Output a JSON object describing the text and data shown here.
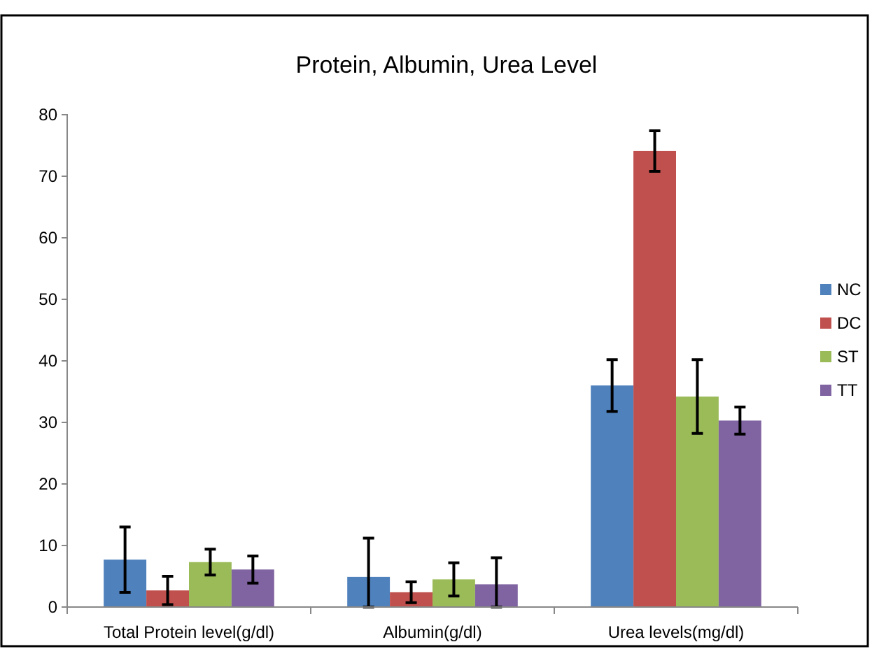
{
  "chart_data": {
    "type": "bar",
    "title": "Protein, Albumin, Urea Level",
    "categories": [
      "Total Protein level(g/dl)",
      "Albumin(g/dl)",
      "Urea levels(mg/dl)"
    ],
    "series": [
      {
        "name": "NC",
        "color": "#4f81bd",
        "values": [
          7.7,
          4.9,
          36.0
        ],
        "errors": [
          5.3,
          [
            0,
            11.2
          ],
          4.2
        ]
      },
      {
        "name": "DC",
        "color": "#c0504d",
        "values": [
          2.7,
          2.4,
          74.1
        ],
        "errors": [
          2.3,
          1.7,
          3.3
        ]
      },
      {
        "name": "ST",
        "color": "#9bbb59",
        "values": [
          7.3,
          4.5,
          34.2
        ],
        "errors": [
          2.1,
          2.7,
          6.0
        ]
      },
      {
        "name": "TT",
        "color": "#8064a2",
        "values": [
          6.1,
          3.7,
          30.3
        ],
        "errors": [
          2.2,
          [
            0,
            8.0
          ],
          2.2
        ]
      }
    ],
    "ylim": [
      0,
      80
    ],
    "yticks": [
      0,
      10,
      20,
      30,
      40,
      50,
      60,
      70,
      80
    ],
    "grid": false,
    "legend": "right"
  }
}
